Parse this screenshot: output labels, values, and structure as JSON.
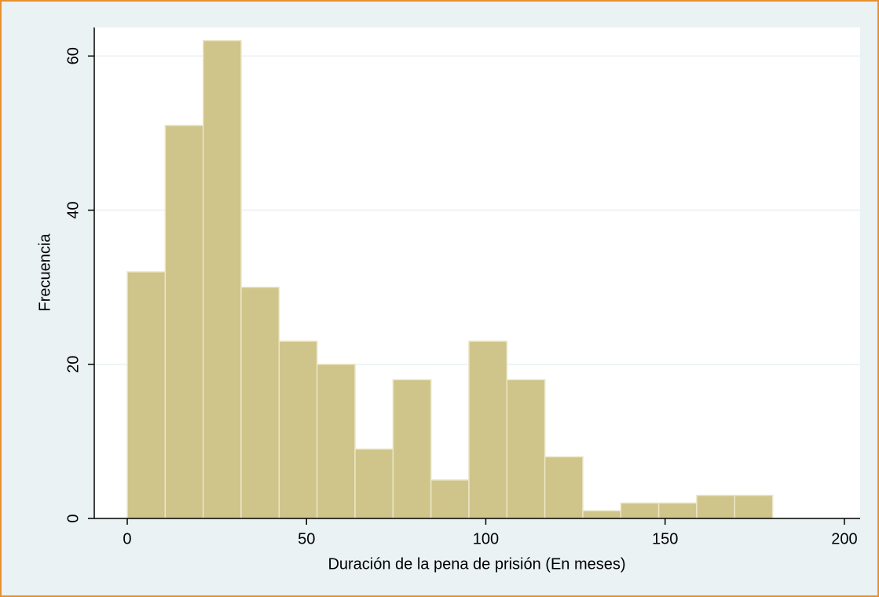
{
  "chart_data": {
    "type": "histogram",
    "xlabel": "Duración de la pena de prisión (En meses)",
    "ylabel": "Frecuencia",
    "bins": [
      0,
      10.59,
      21.18,
      31.76,
      42.35,
      52.94,
      63.53,
      74.12,
      84.71,
      95.29,
      105.88,
      116.47,
      127.06,
      137.65,
      148.24,
      158.82,
      169.41,
      180
    ],
    "values": [
      32,
      51,
      62,
      30,
      23,
      20,
      9,
      18,
      5,
      23,
      18,
      8,
      1,
      2,
      2,
      3,
      3
    ],
    "color": "#cfc489",
    "xlim": [
      -9.2,
      204.4
    ],
    "ylim": [
      0,
      63.7
    ],
    "xticks": [
      0,
      50,
      100,
      150,
      200
    ],
    "yticks": [
      0,
      20,
      40,
      60
    ],
    "grid": true
  }
}
